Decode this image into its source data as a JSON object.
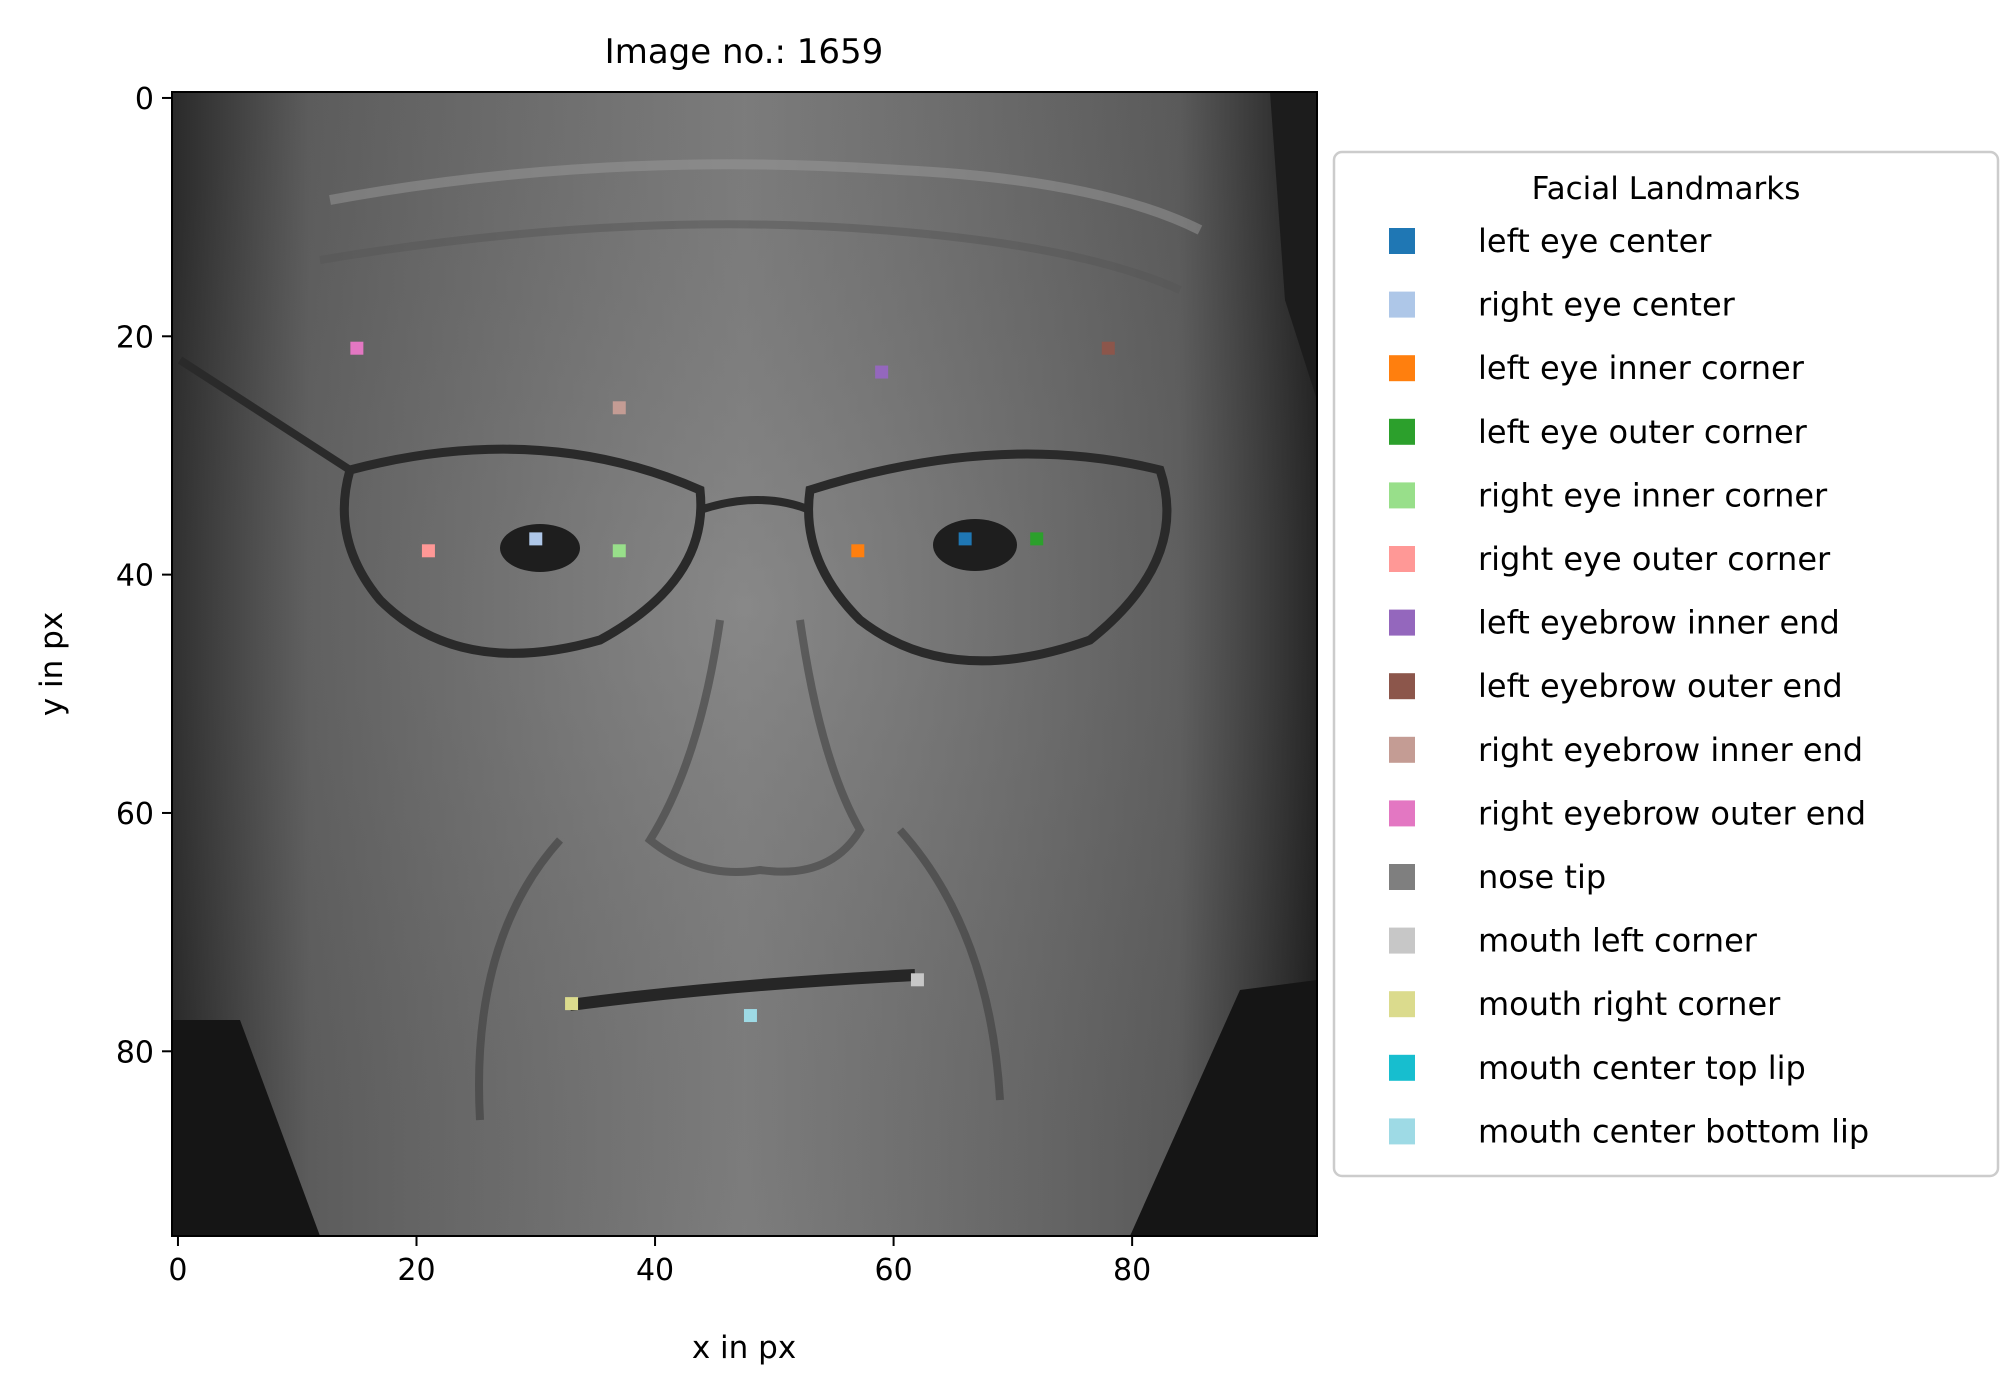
{
  "figure": {
    "title": "Image no.: 1659"
  },
  "chart_data": {
    "type": "scatter",
    "title": "Image no.: 1659",
    "xlabel": "x in px",
    "ylabel": "y in px",
    "xlim": [
      -0.5,
      95.5
    ],
    "ylim": [
      95.5,
      -0.5
    ],
    "y_inverted": true,
    "x_ticks": [
      0,
      20,
      40,
      60,
      80
    ],
    "y_ticks": [
      0,
      20,
      40,
      60,
      80
    ],
    "background": "grayscale face photograph (96x96 px)",
    "grid": false,
    "legend": {
      "title": "Facial Landmarks",
      "placement": "outside-right"
    },
    "series": [
      {
        "name": "left eye center",
        "color": "#1f77b4",
        "x": [
          66
        ],
        "y": [
          37
        ]
      },
      {
        "name": "right eye center",
        "color": "#aec7e8",
        "x": [
          30
        ],
        "y": [
          37
        ]
      },
      {
        "name": "left eye inner corner",
        "color": "#ff7f0e",
        "x": [
          57
        ],
        "y": [
          38
        ]
      },
      {
        "name": "left eye outer corner",
        "color": "#2ca02c",
        "x": [
          72
        ],
        "y": [
          37
        ]
      },
      {
        "name": "right eye inner corner",
        "color": "#98df8a",
        "x": [
          37
        ],
        "y": [
          38
        ]
      },
      {
        "name": "right eye outer corner",
        "color": "#ff9896",
        "x": [
          21
        ],
        "y": [
          38
        ]
      },
      {
        "name": "left eyebrow inner end",
        "color": "#9467bd",
        "x": [
          59
        ],
        "y": [
          23
        ]
      },
      {
        "name": "left eyebrow outer end",
        "color": "#8c564b",
        "x": [
          78
        ],
        "y": [
          21
        ]
      },
      {
        "name": "right eyebrow inner end",
        "color": "#c49c94",
        "x": [
          37
        ],
        "y": [
          26
        ]
      },
      {
        "name": "right eyebrow outer end",
        "color": "#e377c2",
        "x": [
          15
        ],
        "y": [
          21
        ]
      },
      {
        "name": "nose tip",
        "color": "#7f7f7f",
        "x": [],
        "y": []
      },
      {
        "name": "mouth left corner",
        "color": "#c7c7c7",
        "x": [
          62
        ],
        "y": [
          74
        ]
      },
      {
        "name": "mouth right corner",
        "color": "#dbdb8d",
        "x": [
          33
        ],
        "y": [
          76
        ]
      },
      {
        "name": "mouth center top lip",
        "color": "#17becf",
        "x": [],
        "y": []
      },
      {
        "name": "mouth center bottom lip",
        "color": "#9edae5",
        "x": [
          48
        ],
        "y": [
          77
        ]
      }
    ]
  }
}
